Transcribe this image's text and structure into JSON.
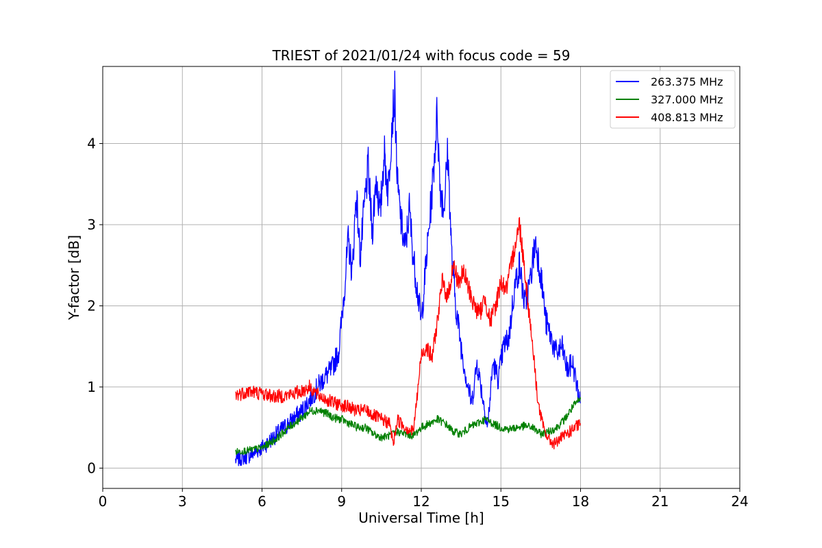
{
  "chart_data": {
    "type": "line",
    "title": "TRIEST of 2021/01/24 with focus code = 59",
    "xlabel": "Universal Time [h]",
    "ylabel": "Y-factor [dB]",
    "xlim": [
      0,
      24
    ],
    "ylim": [
      -0.25,
      4.95
    ],
    "xticks": [
      0,
      3,
      6,
      9,
      12,
      15,
      18,
      21,
      24
    ],
    "yticks": [
      0,
      1,
      2,
      3,
      4
    ],
    "grid": true,
    "legend_position": "top-right",
    "series": [
      {
        "name": "263.375 MHz",
        "color": "#0000ff",
        "x": [
          5.0,
          5.5,
          6.0,
          6.5,
          7.0,
          7.5,
          8.0,
          8.3,
          8.6,
          8.9,
          9.1,
          9.25,
          9.4,
          9.55,
          9.7,
          9.85,
          10.0,
          10.15,
          10.3,
          10.45,
          10.6,
          10.75,
          10.9,
          11.0,
          11.1,
          11.25,
          11.4,
          11.55,
          11.7,
          11.85,
          12.0,
          12.15,
          12.3,
          12.45,
          12.6,
          12.7,
          12.85,
          13.0,
          13.15,
          13.3,
          13.5,
          13.7,
          13.9,
          14.1,
          14.3,
          14.5,
          14.7,
          14.9,
          15.1,
          15.3,
          15.5,
          15.7,
          15.9,
          16.1,
          16.3,
          16.5,
          16.7,
          16.9,
          17.1,
          17.3,
          17.5,
          17.7,
          17.9,
          18.0
        ],
        "y": [
          0.1,
          0.15,
          0.25,
          0.4,
          0.55,
          0.7,
          0.95,
          1.1,
          1.2,
          1.45,
          2.2,
          2.8,
          2.4,
          3.4,
          2.6,
          3.2,
          3.7,
          2.9,
          3.6,
          3.1,
          3.9,
          3.4,
          4.3,
          4.6,
          3.5,
          3.0,
          2.7,
          3.2,
          2.6,
          2.2,
          1.8,
          2.4,
          3.0,
          3.6,
          4.4,
          3.5,
          3.2,
          3.9,
          2.6,
          2.0,
          1.5,
          1.1,
          0.8,
          1.3,
          0.9,
          0.5,
          1.3,
          1.1,
          1.5,
          1.6,
          2.2,
          2.5,
          2.0,
          2.3,
          2.8,
          2.4,
          1.8,
          1.6,
          1.4,
          1.5,
          1.2,
          1.3,
          0.95,
          0.8
        ]
      },
      {
        "name": "327.000 MHz",
        "color": "#008000",
        "x": [
          5.0,
          5.5,
          6.0,
          6.5,
          7.0,
          7.5,
          7.8,
          8.1,
          8.4,
          8.7,
          9.0,
          9.3,
          9.6,
          9.9,
          10.2,
          10.5,
          10.8,
          11.1,
          11.4,
          11.7,
          12.0,
          12.3,
          12.6,
          12.9,
          13.2,
          13.5,
          13.8,
          14.1,
          14.4,
          14.7,
          15.0,
          15.3,
          15.6,
          15.9,
          16.2,
          16.5,
          16.8,
          17.1,
          17.4,
          17.7,
          18.0
        ],
        "y": [
          0.2,
          0.22,
          0.25,
          0.35,
          0.5,
          0.62,
          0.7,
          0.72,
          0.68,
          0.62,
          0.6,
          0.55,
          0.5,
          0.5,
          0.42,
          0.38,
          0.4,
          0.45,
          0.42,
          0.4,
          0.5,
          0.55,
          0.6,
          0.55,
          0.45,
          0.42,
          0.5,
          0.55,
          0.6,
          0.55,
          0.5,
          0.48,
          0.5,
          0.52,
          0.5,
          0.42,
          0.45,
          0.5,
          0.6,
          0.75,
          0.85
        ]
      },
      {
        "name": "408.813 MHz",
        "color": "#ff0000",
        "x": [
          5.0,
          5.5,
          6.0,
          6.5,
          7.0,
          7.5,
          7.8,
          8.1,
          8.4,
          8.7,
          9.0,
          9.3,
          9.6,
          9.9,
          10.2,
          10.5,
          10.8,
          10.95,
          11.1,
          11.4,
          11.7,
          11.85,
          12.0,
          12.2,
          12.4,
          12.6,
          12.8,
          13.0,
          13.2,
          13.4,
          13.6,
          13.8,
          14.0,
          14.2,
          14.4,
          14.6,
          14.8,
          15.0,
          15.2,
          15.4,
          15.55,
          15.7,
          15.85,
          16.0,
          16.2,
          16.4,
          16.6,
          16.8,
          17.0,
          17.2,
          17.4,
          17.6,
          17.8,
          18.0
        ],
        "y": [
          0.9,
          0.95,
          0.92,
          0.88,
          0.9,
          0.95,
          1.0,
          0.9,
          0.85,
          0.8,
          0.78,
          0.75,
          0.7,
          0.72,
          0.65,
          0.6,
          0.55,
          0.3,
          0.6,
          0.5,
          0.45,
          0.9,
          1.4,
          1.5,
          1.35,
          1.8,
          2.3,
          2.1,
          2.5,
          2.3,
          2.4,
          2.2,
          2.0,
          1.9,
          2.1,
          1.8,
          2.0,
          2.3,
          2.2,
          2.5,
          2.8,
          3.0,
          2.6,
          2.1,
          1.5,
          0.8,
          0.5,
          0.35,
          0.3,
          0.35,
          0.4,
          0.45,
          0.5,
          0.55
        ]
      }
    ]
  }
}
